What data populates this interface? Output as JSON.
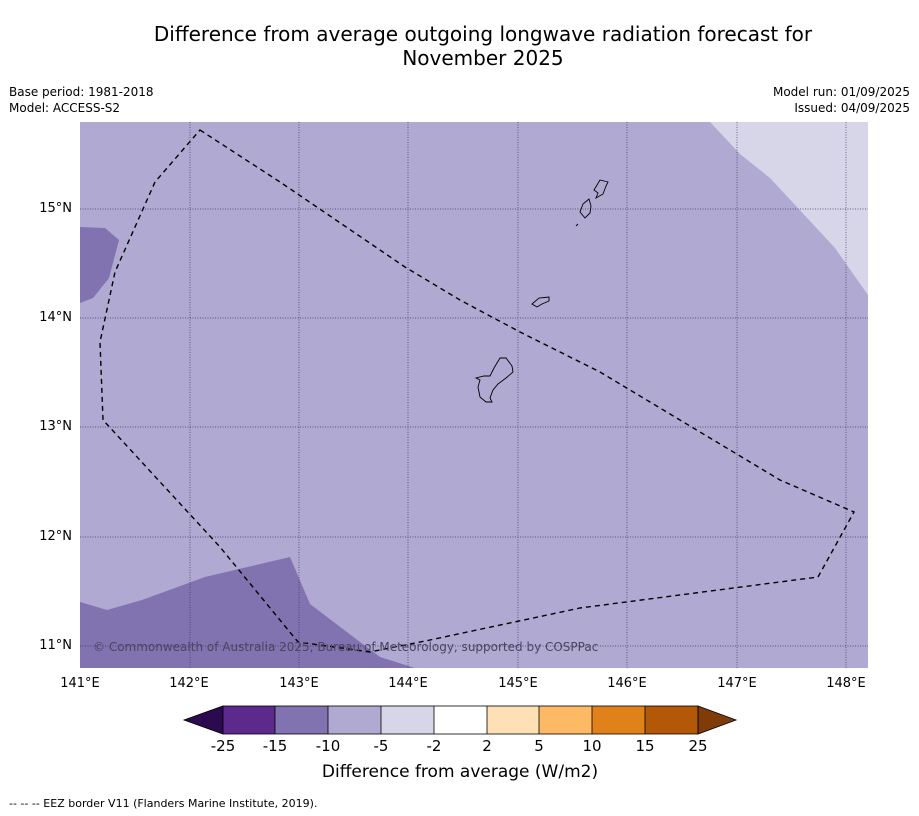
{
  "header": {
    "title_line1": "Difference from average outgoing longwave radiation forecast for",
    "title_line2": "November 2025",
    "base_period": "Base period: 1981-2018",
    "model": "Model: ACCESS-S2",
    "model_run": "Model run: 01/09/2025",
    "issued": "Issued: 04/09/2025"
  },
  "map": {
    "copyright": "© Commonwealth of Australia 2025, Bureau of Meteorology, supported by COSPPac",
    "lat_labels": [
      "15°N",
      "14°N",
      "13°N",
      "12°N",
      "11°N"
    ],
    "lon_labels": [
      "141°E",
      "142°E",
      "143°E",
      "144°E",
      "145°E",
      "146°E",
      "147°E",
      "148°E"
    ],
    "fill_colors": {
      "minus10_minus5": "#b0a9d1",
      "minus15_minus10": "#8073af",
      "minus5_minus2": "#d7d6e9"
    }
  },
  "colorbar": {
    "tick_labels": [
      "-25",
      "-15",
      "-10",
      "-5",
      "-2",
      "2",
      "5",
      "10",
      "15",
      "25"
    ],
    "colors": [
      "#2d0a4f",
      "#5b2a8c",
      "#8073af",
      "#b0a9d1",
      "#d7d6e9",
      "#ffffff",
      "#fde0b6",
      "#fdb964",
      "#e0811a",
      "#b35806",
      "#7f3b08"
    ],
    "title": "Difference from average (W/m2)"
  },
  "legend": {
    "eez_note": "--  --  -- EEZ border V11 (Flanders Marine Institute, 2019)."
  }
}
